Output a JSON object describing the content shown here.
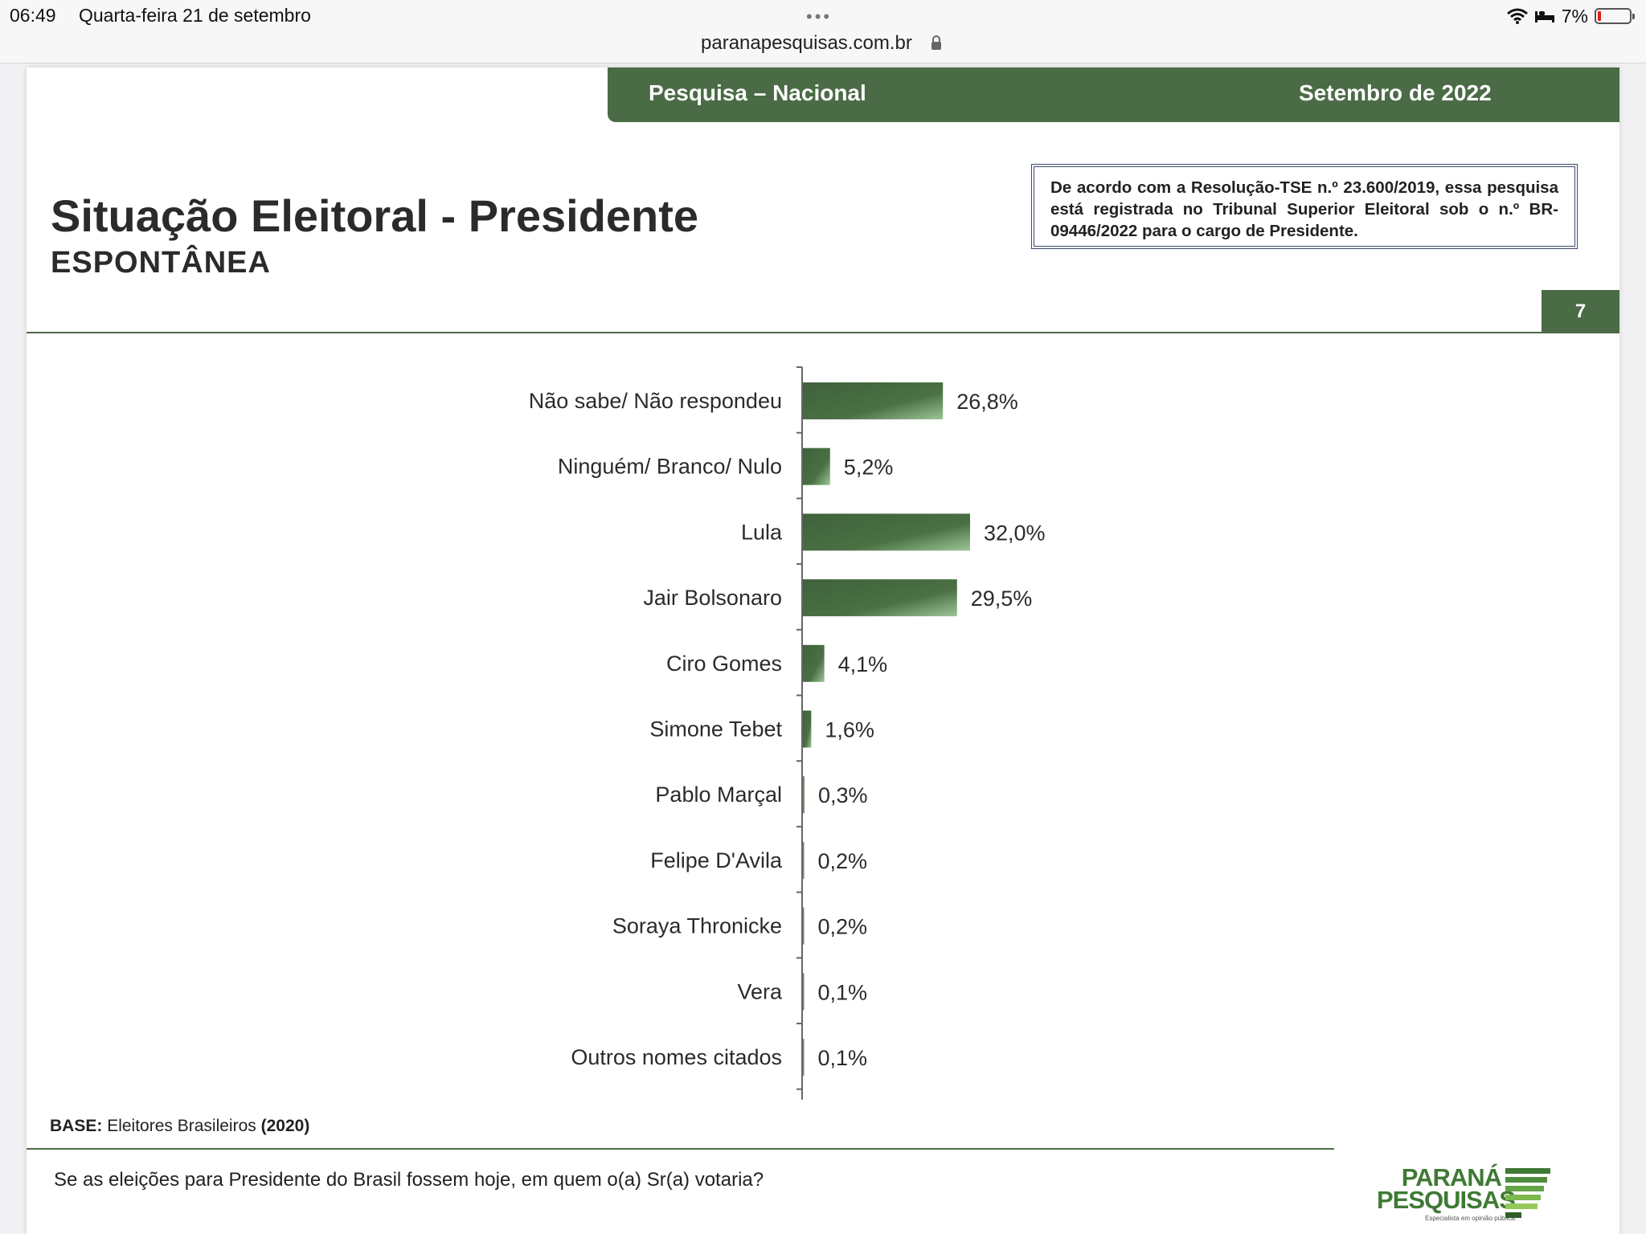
{
  "status_bar": {
    "time": "06:49",
    "date": "Quarta-feira 21 de setembro",
    "url": "paranapesquisas.com.br",
    "battery": "7%"
  },
  "slide": {
    "band_left": "Pesquisa – Nacional",
    "band_right": "Setembro de 2022",
    "title": "Situação Eleitoral - Presidente",
    "subtitle": "ESPONTÂNEA",
    "notice": "De acordo com a Resolução-TSE n.º 23.600/2019, essa pesquisa está registrada no Tribunal Superior Eleitoral sob o n.º BR-09446/2022 para o cargo de Presidente.",
    "page_number": "7",
    "base_label": "BASE:",
    "base_text": "Eleitores Brasileiros",
    "base_n": "(2020)",
    "question": "Se as eleições para Presidente do Brasil fossem hoje, em quem o(a) Sr(a) votaria?",
    "logo_line1": "PARANÁ",
    "logo_line2": "PESQUISAS",
    "logo_tagline": "Especialista em opinião pública."
  },
  "colors": {
    "brand_green": "#4a6b45",
    "bar_dark": "#3f623a",
    "bar_light": "#8fb88a"
  },
  "chart_data": {
    "type": "bar",
    "orientation": "horizontal",
    "categories": [
      "Não sabe/ Não respondeu",
      "Ninguém/ Branco/ Nulo",
      "Lula",
      "Jair Bolsonaro",
      "Ciro Gomes",
      "Simone Tebet",
      "Pablo Marçal",
      "Felipe D'Avila",
      "Soraya Thronicke",
      "Vera",
      "Outros nomes citados"
    ],
    "values": [
      26.8,
      5.2,
      32.0,
      29.5,
      4.1,
      1.6,
      0.3,
      0.2,
      0.2,
      0.1,
      0.1
    ],
    "value_labels": [
      "26,8%",
      "5,2%",
      "32,0%",
      "29,5%",
      "4,1%",
      "1,6%",
      "0,3%",
      "0,2%",
      "0,2%",
      "0,1%",
      "0,1%"
    ],
    "unit": "%",
    "grid": false,
    "legend": "none"
  }
}
